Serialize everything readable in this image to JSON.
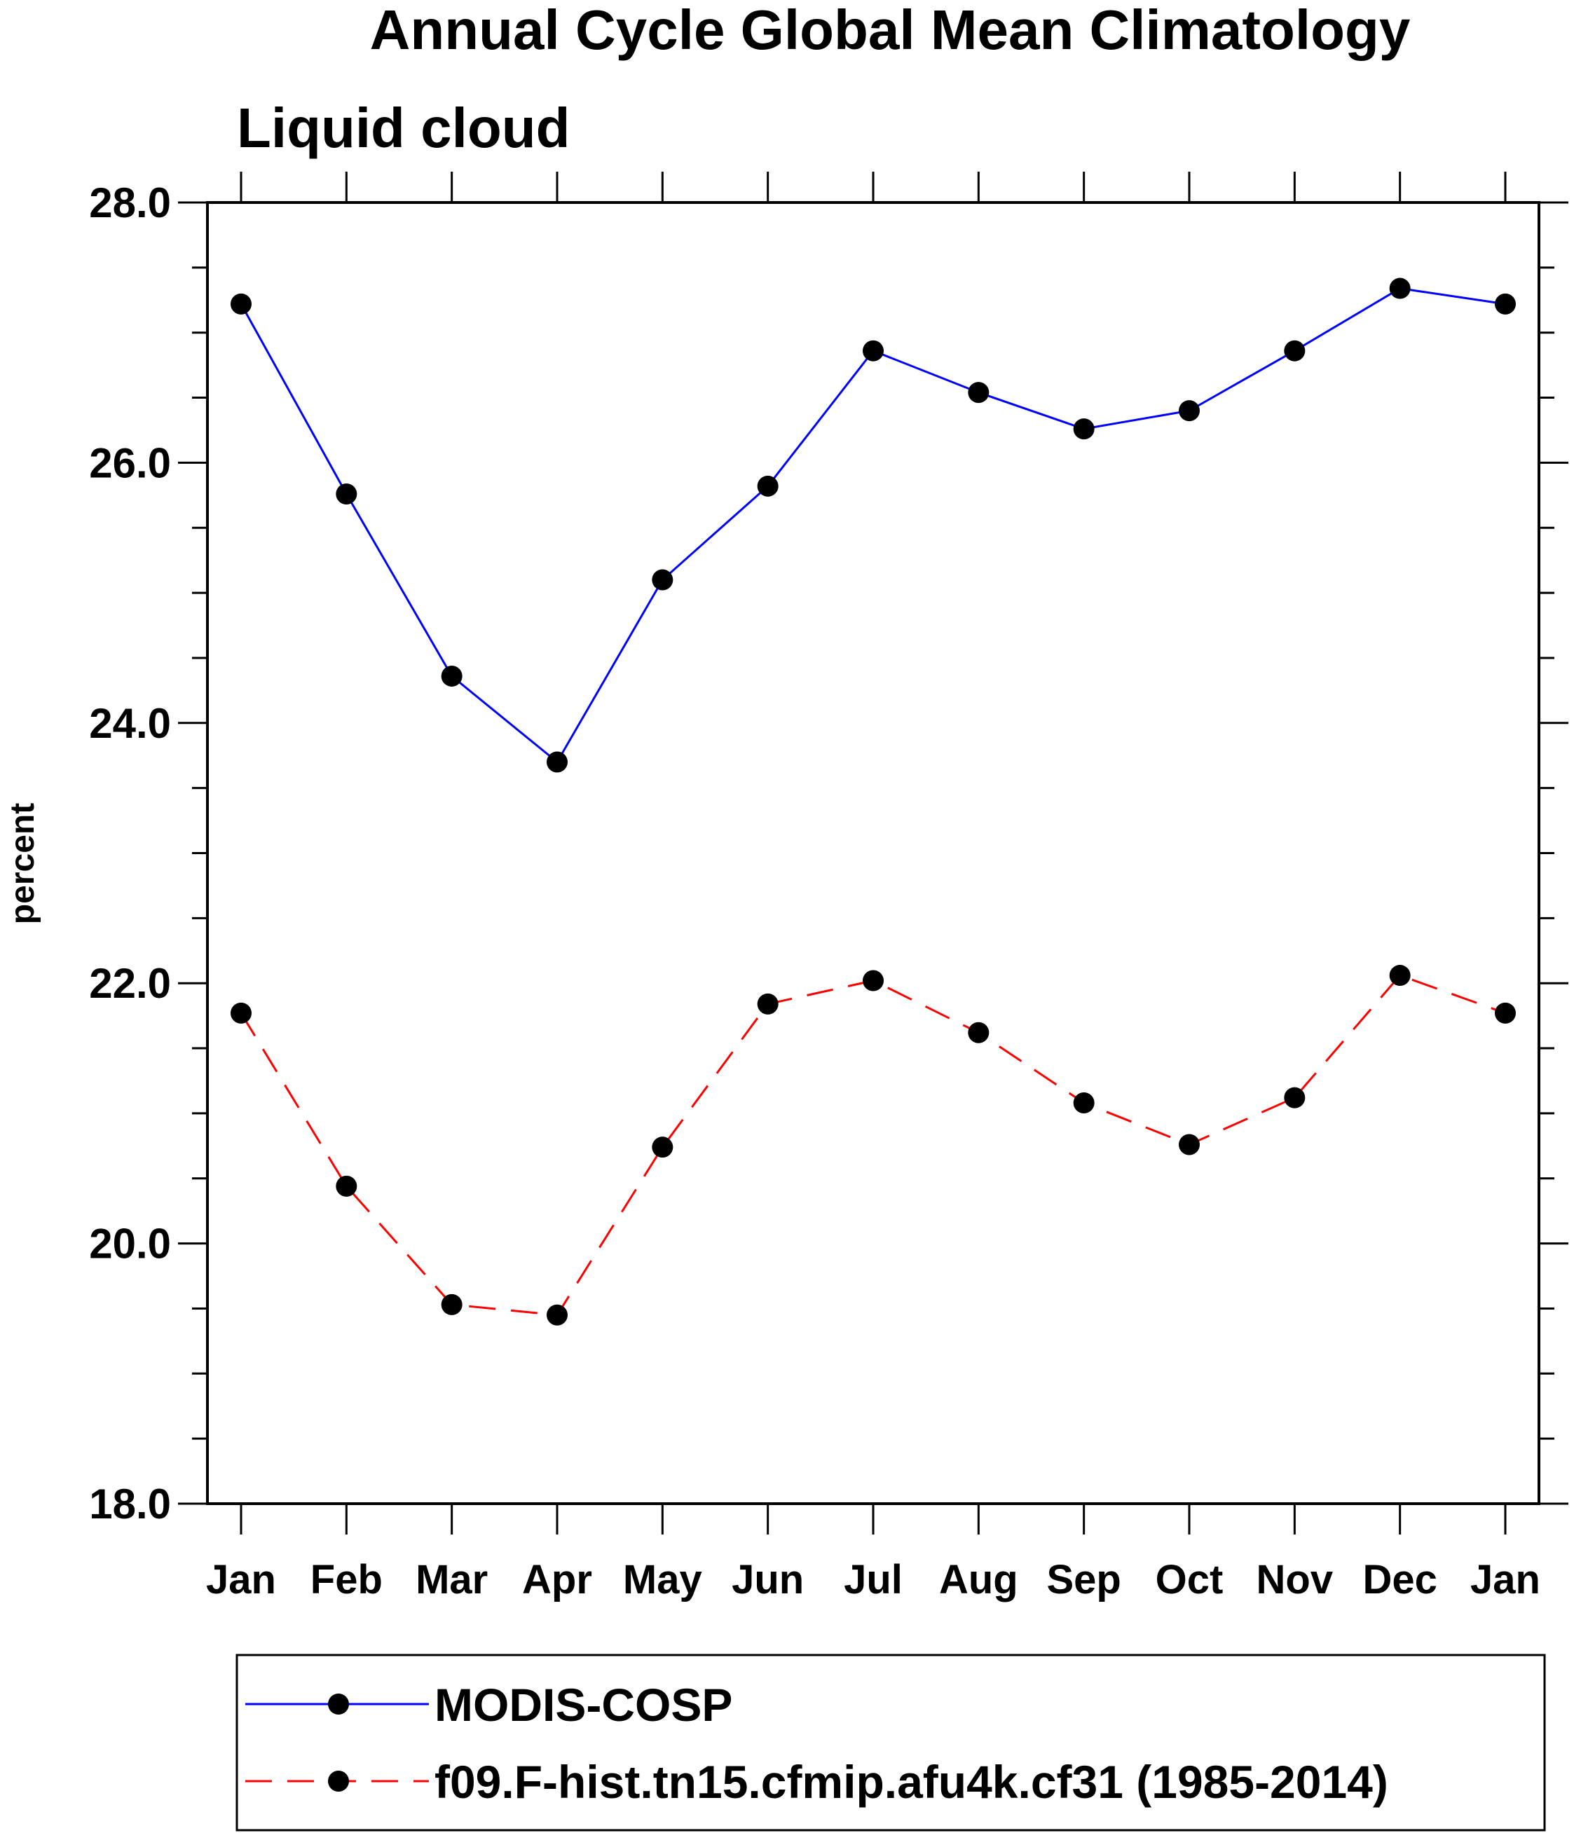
{
  "chart_data": {
    "type": "line",
    "title": "Annual Cycle Global Mean Climatology",
    "subtitle": "Liquid cloud",
    "xlabel": "",
    "ylabel": "percent",
    "categories": [
      "Jan",
      "Feb",
      "Mar",
      "Apr",
      "May",
      "Jun",
      "Jul",
      "Aug",
      "Sep",
      "Oct",
      "Nov",
      "Dec",
      "Jan"
    ],
    "ylim": [
      18.0,
      28.0
    ],
    "y_ticks": [
      "18.0",
      "20.0",
      "22.0",
      "24.0",
      "26.0",
      "28.0"
    ],
    "grid": false,
    "legend_position": "bottom",
    "series": [
      {
        "name": "MODIS-COSP",
        "color": "#0000ff",
        "line_style": "solid",
        "marker": "circle",
        "values": [
          27.22,
          25.76,
          24.36,
          23.7,
          25.1,
          25.82,
          26.86,
          26.54,
          26.26,
          26.4,
          26.86,
          27.34,
          27.22
        ]
      },
      {
        "name": "f09.F-hist.tn15.cfmip.afu4k.cf31 (1985-2014)",
        "color": "#ff0000",
        "line_style": "dashed",
        "marker": "circle",
        "values": [
          21.77,
          20.44,
          19.53,
          19.45,
          20.74,
          21.84,
          22.02,
          21.62,
          21.08,
          20.76,
          21.12,
          22.06,
          21.77
        ]
      }
    ]
  }
}
